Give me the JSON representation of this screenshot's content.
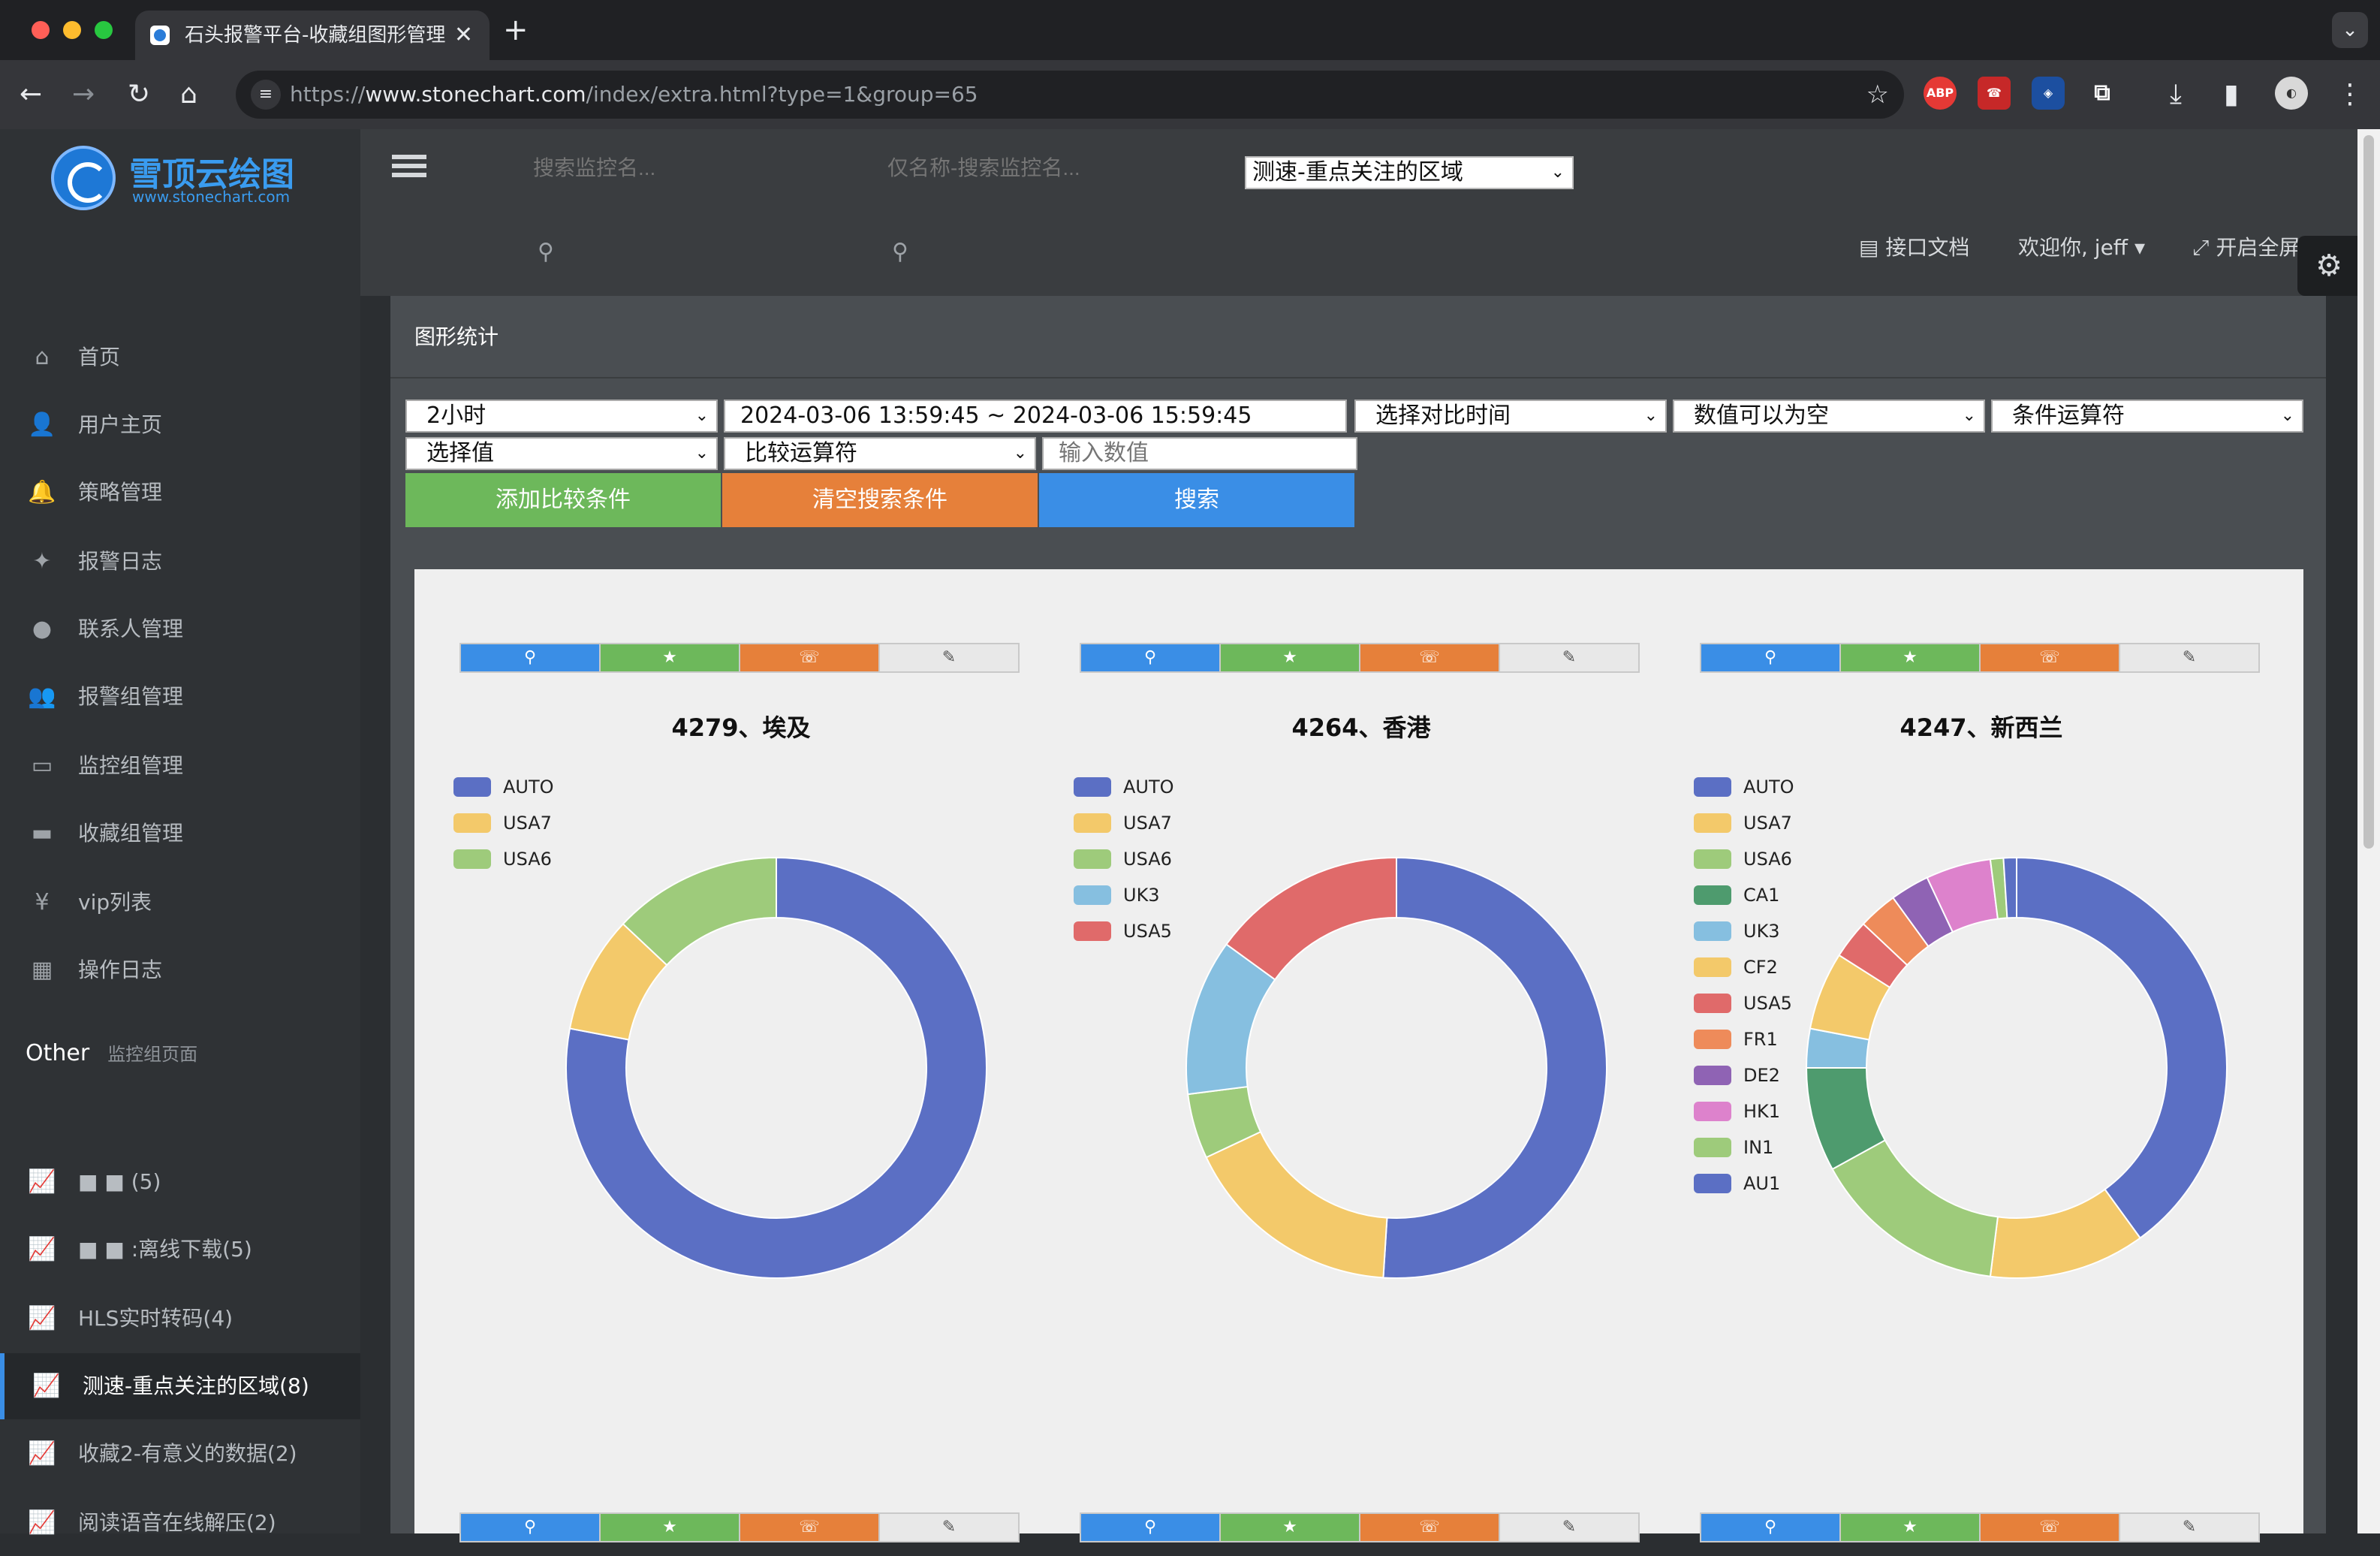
{
  "browser": {
    "tab_title": "石头报警平台-收藏组图形管理",
    "tab_close": "✕",
    "new_tab": "+",
    "url_prefix": "https://",
    "url_host": "www.stonechart.com",
    "url_path": "/index/extra.html?type=1&group=65",
    "extensions": [
      "ABP",
      "☎",
      "◈",
      "⚲"
    ]
  },
  "brand": {
    "title": "雪顶云绘图",
    "subtitle": "www.stonechart.com"
  },
  "sidebar": {
    "items": [
      {
        "label": "首页",
        "icon": "home-icon",
        "glyph": "⌂"
      },
      {
        "label": "用户主页",
        "icon": "user-plus-icon",
        "glyph": "👤"
      },
      {
        "label": "策略管理",
        "icon": "bell-icon",
        "glyph": "🔔"
      },
      {
        "label": "报警日志",
        "icon": "twitter-icon",
        "glyph": "✦"
      },
      {
        "label": "联系人管理",
        "icon": "user-icon",
        "glyph": "●"
      },
      {
        "label": "报警组管理",
        "icon": "users-icon",
        "glyph": "👥"
      },
      {
        "label": "监控组管理",
        "icon": "desktop-icon",
        "glyph": "▭"
      },
      {
        "label": "收藏组管理",
        "icon": "laptop-icon",
        "glyph": "▬"
      },
      {
        "label": "vip列表",
        "icon": "yen-icon",
        "glyph": "¥"
      },
      {
        "label": "操作日志",
        "icon": "table-icon",
        "glyph": "▦"
      }
    ],
    "other_title": "Other",
    "other_subtitle": "监控组页面",
    "groups": [
      {
        "label": "■ ■ (5)",
        "active": false
      },
      {
        "label": "■ ■ :离线下载(5)",
        "active": false
      },
      {
        "label": "HLS实时转码(4)",
        "active": false
      },
      {
        "label": "测速-重点关注的区域(8)",
        "active": true
      },
      {
        "label": "收藏2-有意义的数据(2)",
        "active": false
      },
      {
        "label": "阅读语音在线解压(2)",
        "active": false
      }
    ]
  },
  "header": {
    "search1_placeholder": "搜索监控名...",
    "search2_placeholder": "仅名称-搜索监控名...",
    "group_select": "测速-重点关注的区域",
    "api_docs": "接口文档",
    "welcome": "欢迎你, jeff",
    "fullscreen": "开启全屏"
  },
  "panel": {
    "title": "图形统计",
    "range_select": "2小时",
    "date_range": "2024-03-06 13:59:45 ~ 2024-03-06 15:59:45",
    "compare_time": "选择对比时间",
    "nullable": "数值可以为空",
    "condition_op": "条件运算符",
    "select_value": "选择值",
    "compare_op": "比较运算符",
    "input_value_placeholder": "输入数值",
    "btn_add": "添加比较条件",
    "btn_clear": "清空搜索条件",
    "btn_search": "搜索"
  },
  "colors": {
    "AUTO": "#5b6fc4",
    "USA7": "#f3c96a",
    "USA6": "#9ecb7b",
    "CA1": "#4e9b6e",
    "UK3": "#86bfe0",
    "CF2": "#f3c96a",
    "USA5": "#e06a6a",
    "FR1": "#ee8b5a",
    "DE2": "#8f63b4",
    "HK1": "#dd82cc",
    "IN1": "#9ecb7b",
    "AU1": "#5b6fc4",
    "btn_search": "#3a8ee6",
    "btn_star": "#6db85b",
    "btn_phone": "#e6803a"
  },
  "chart_data": [
    {
      "type": "pie",
      "title": "4279、埃及",
      "labels": [
        "AUTO",
        "USA7",
        "USA6"
      ],
      "values": [
        78,
        9,
        13
      ]
    },
    {
      "type": "pie",
      "title": "4264、香港",
      "labels": [
        "AUTO",
        "USA7",
        "USA6",
        "UK3",
        "USA5"
      ],
      "values": [
        51,
        17,
        5,
        12,
        15
      ]
    },
    {
      "type": "pie",
      "title": "4247、新西兰",
      "labels": [
        "AUTO",
        "USA7",
        "USA6",
        "CA1",
        "UK3",
        "CF2",
        "USA5",
        "FR1",
        "DE2",
        "HK1",
        "IN1",
        "AU1"
      ],
      "values": [
        40,
        12,
        15,
        8,
        3,
        6,
        3,
        3,
        3,
        5,
        1,
        1
      ]
    }
  ]
}
